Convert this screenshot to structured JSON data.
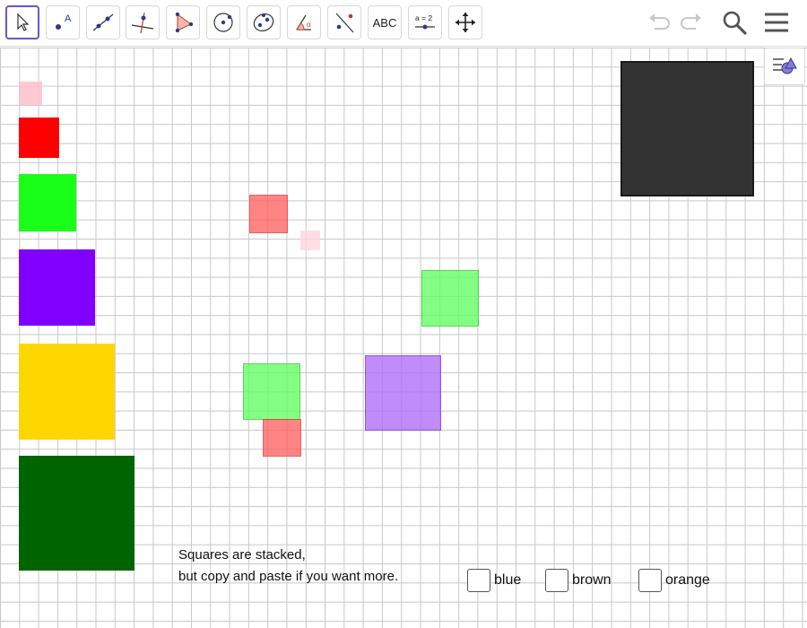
{
  "toolbar": {
    "tools": [
      {
        "name": "move-tool",
        "icon": "cursor-arrow-icon"
      },
      {
        "name": "point-tool",
        "icon": "point-icon",
        "label": "A"
      },
      {
        "name": "line-tool",
        "icon": "line-icon"
      },
      {
        "name": "perpendicular-tool",
        "icon": "perpendicular-line-icon"
      },
      {
        "name": "polygon-tool",
        "icon": "polygon-icon"
      },
      {
        "name": "circle-tool",
        "icon": "circle-icon"
      },
      {
        "name": "ellipse-tool",
        "icon": "ellipse-icon"
      },
      {
        "name": "angle-tool",
        "icon": "angle-icon",
        "label": "α"
      },
      {
        "name": "reflect-tool",
        "icon": "reflect-icon"
      },
      {
        "name": "text-tool",
        "icon": "text-icon",
        "label": "ABC"
      },
      {
        "name": "slider-tool",
        "icon": "slider-icon",
        "label": "a = 2"
      },
      {
        "name": "move-view-tool",
        "icon": "move-view-icon"
      }
    ],
    "right": [
      {
        "name": "undo-button",
        "icon": "undo-icon"
      },
      {
        "name": "redo-button",
        "icon": "redo-icon"
      },
      {
        "name": "search-button",
        "icon": "search-icon"
      },
      {
        "name": "menu-button",
        "icon": "hamburger-menu-icon"
      }
    ]
  },
  "style_bar": {
    "icon": "style-bar-toggle-icon"
  },
  "squares": [
    {
      "name": "square-pink-small",
      "color": "#ffc0cb",
      "opacity": 0.85
    },
    {
      "name": "square-red",
      "color": "#ff0000",
      "opacity": 1
    },
    {
      "name": "square-green",
      "color": "#1aff1a",
      "opacity": 1
    },
    {
      "name": "square-purple",
      "color": "#8000ff",
      "opacity": 1
    },
    {
      "name": "square-yellow",
      "color": "#ffd700",
      "opacity": 1
    },
    {
      "name": "square-dark-green",
      "color": "#006400",
      "opacity": 1
    },
    {
      "name": "square-black",
      "color": "#333333",
      "opacity": 1
    },
    {
      "name": "square-red-translucent-1",
      "color": "#ff5c5c",
      "opacity": 0.75
    },
    {
      "name": "square-pink-translucent",
      "color": "#ffd6dc",
      "opacity": 0.8
    },
    {
      "name": "square-green-translucent-1",
      "color": "#5cff5c",
      "opacity": 0.75
    },
    {
      "name": "square-purple-translucent",
      "color": "#b070f8",
      "opacity": 0.8
    },
    {
      "name": "square-green-translucent-2",
      "color": "#5cff5c",
      "opacity": 0.75
    },
    {
      "name": "square-red-translucent-2",
      "color": "#ff5c5c",
      "opacity": 0.75
    }
  ],
  "note": {
    "line1": "Squares are stacked,",
    "line2": "but copy and paste if you want more."
  },
  "checkboxes": [
    {
      "name": "blue",
      "label": "blue",
      "checked": false
    },
    {
      "name": "brown",
      "label": "brown",
      "checked": false
    },
    {
      "name": "orange",
      "label": "orange",
      "checked": false
    }
  ]
}
